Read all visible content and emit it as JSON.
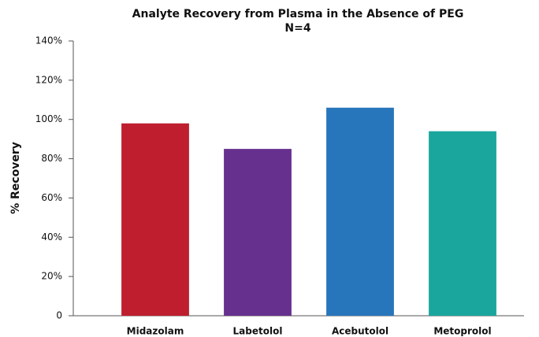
{
  "chart_data": {
    "type": "bar",
    "title": "Analyte Recovery from Plasma in the Absence of PEG",
    "subtitle": "N=4",
    "y_label": "% Recovery",
    "categories": [
      "Midazolam",
      "Labetolol",
      "Acebutolol",
      "Metoprolol"
    ],
    "values": [
      98,
      85,
      106,
      94
    ],
    "colors": [
      "#be1e2d",
      "#66308f",
      "#2776bb",
      "#1aa69c"
    ],
    "ylim": [
      0,
      140
    ],
    "yticks": [
      0,
      {
        "value": 20,
        "label": "20%"
      },
      {
        "value": 40,
        "label": "40%"
      },
      {
        "value": 60,
        "label": "60%"
      },
      {
        "value": 80,
        "label": "80%"
      },
      {
        "value": 100,
        "label": "100%"
      },
      {
        "value": 120,
        "label": "120%"
      },
      {
        "value": 140,
        "label": "140%"
      }
    ],
    "grid": false
  }
}
